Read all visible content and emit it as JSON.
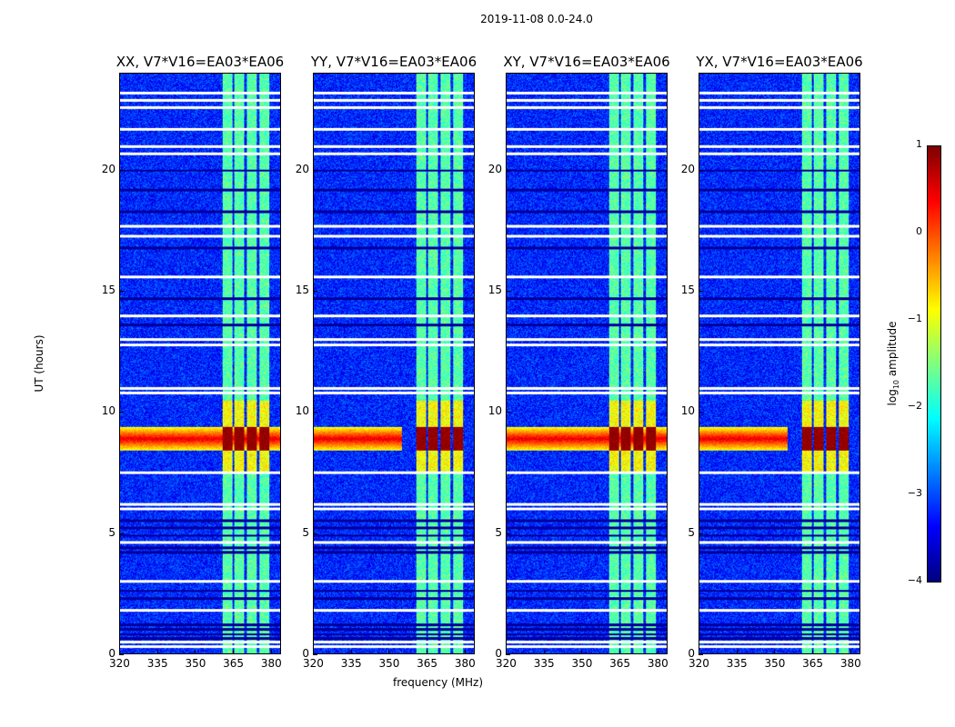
{
  "chart_data": {
    "type": "heatmap",
    "suptitle": "2019-11-08 0.0-24.0",
    "xlabel": "frequency (MHz)",
    "ylabel": "UT (hours)",
    "xlim": [
      320,
      384
    ],
    "ylim": [
      0,
      24
    ],
    "xticks": [
      "320",
      "335",
      "350",
      "365",
      "380"
    ],
    "xtick_values": [
      320,
      335,
      350,
      365,
      380
    ],
    "yticks": [
      "0",
      "5",
      "10",
      "15",
      "20"
    ],
    "ytick_values": [
      0,
      5,
      10,
      15,
      20
    ],
    "panels": [
      {
        "title": "XX, V7*V16=EA03*EA06"
      },
      {
        "title": "YY, V7*V16=EA03*EA06"
      },
      {
        "title": "XY, V7*V16=EA03*EA06"
      },
      {
        "title": "YX, V7*V16=EA03*EA06"
      }
    ],
    "colorbar": {
      "label_prefix": "log",
      "label_sub": "10",
      "label_suffix": " amplitude",
      "range": [
        -4,
        1
      ],
      "ticks": [
        "1",
        "0",
        "−1",
        "−2",
        "−3",
        "−4"
      ],
      "tick_values": [
        1,
        0,
        -1,
        -2,
        -3,
        -4
      ],
      "colormap": "jet"
    },
    "background_level": -3.2,
    "rfi_subbands_mhz": [
      [
        360.5,
        365
      ],
      [
        365,
        370
      ],
      [
        370,
        375
      ],
      [
        375,
        380
      ]
    ],
    "rfi_level": -1.7,
    "strong_event": {
      "hours": [
        8.4,
        9.4
      ],
      "level": 0.3,
      "subband_level": 0.9
    },
    "flagged_rows_hours": [
      23.2,
      22.9,
      22.6,
      21.7,
      21.0,
      20.7,
      17.7,
      17.3,
      15.6,
      14.0,
      13.0,
      12.8,
      11.0,
      10.8,
      7.5,
      6.2,
      6.0,
      4.6,
      3.0,
      1.8,
      0.5,
      0.3
    ],
    "dark_rows_hours": [
      20.0,
      19.2,
      18.3,
      16.8,
      14.7,
      13.6,
      5.5,
      5.2,
      4.9,
      4.4,
      4.2,
      2.6,
      2.3,
      1.2,
      1.0,
      0.8,
      0.65
    ]
  }
}
